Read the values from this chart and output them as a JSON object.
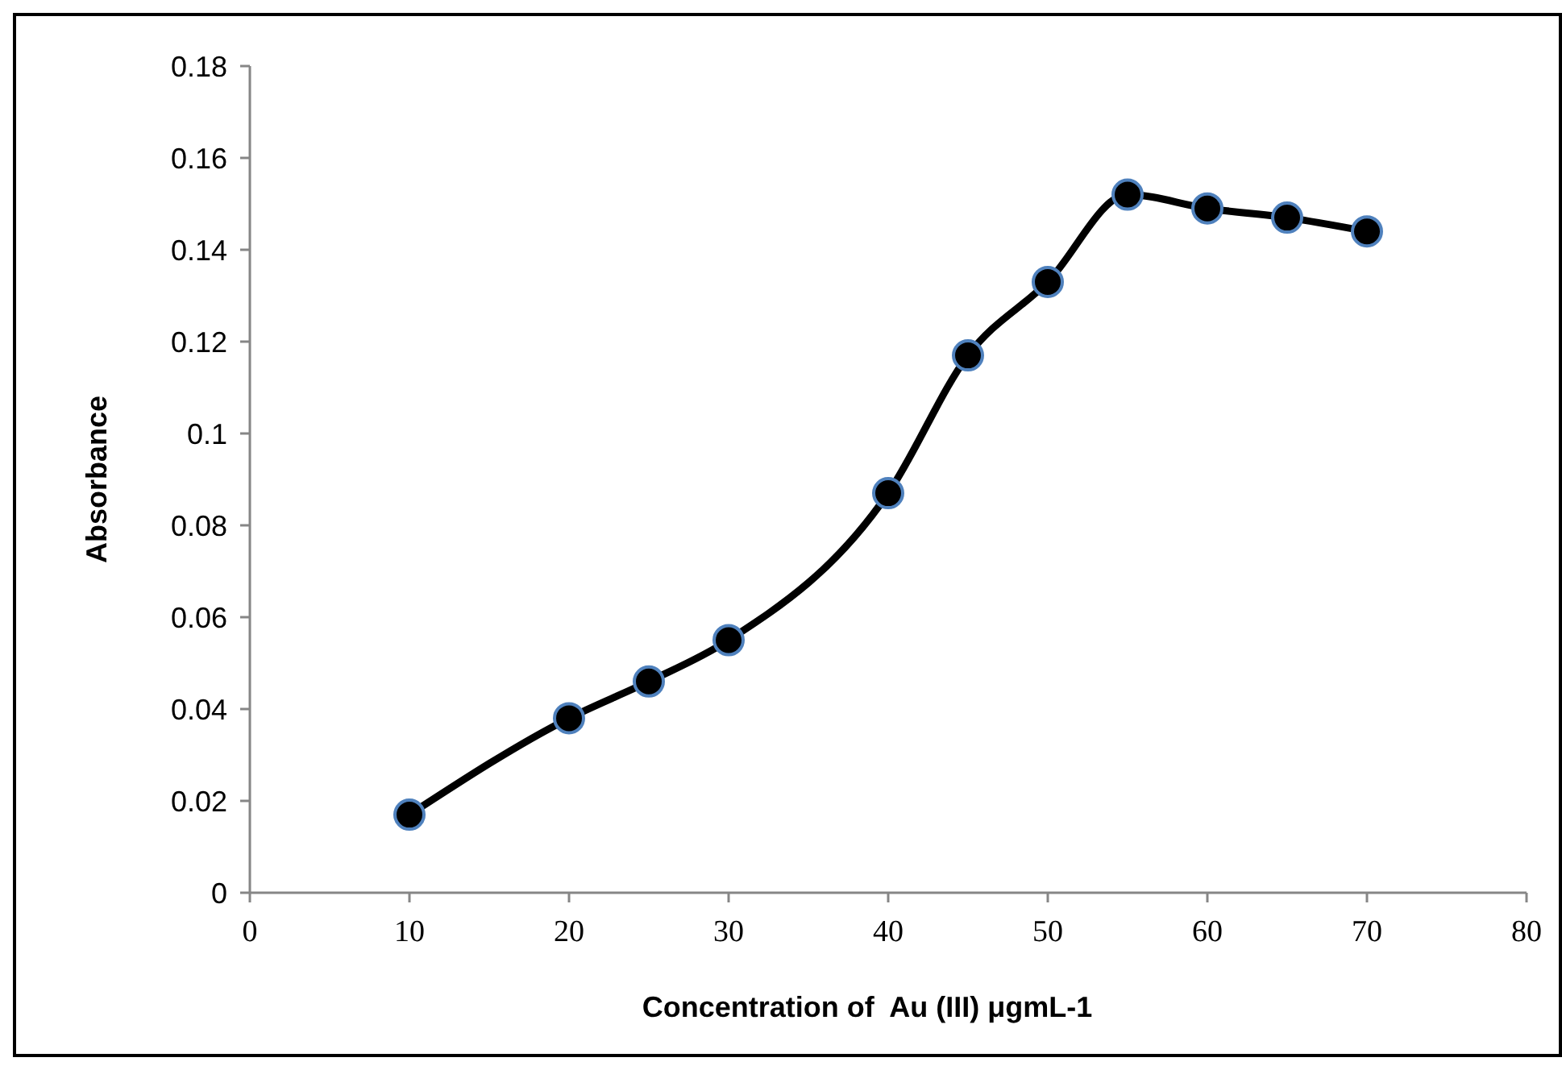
{
  "chart_data": {
    "type": "line",
    "xlabel": "Concentration of  Au (III) μgmL-1",
    "ylabel": "Absorbance",
    "x": [
      10,
      20,
      25,
      30,
      40,
      45,
      50,
      55,
      60,
      65,
      70
    ],
    "series": [
      {
        "color": "#000000",
        "values": [
          0.017,
          0.038,
          0.046,
          0.055,
          0.087,
          0.117,
          0.133,
          0.152,
          0.149,
          0.147,
          0.144
        ]
      }
    ],
    "xlim": [
      0,
      80
    ],
    "xticks": [
      0,
      10,
      20,
      30,
      40,
      50,
      60,
      70,
      80
    ],
    "ylim": [
      0,
      0.18
    ],
    "yticks": [
      0,
      0.02,
      0.04,
      0.06,
      0.08,
      0.1,
      0.12,
      0.14,
      0.16,
      0.18
    ],
    "marker": "circle",
    "line_style": "solid",
    "grid": false
  }
}
